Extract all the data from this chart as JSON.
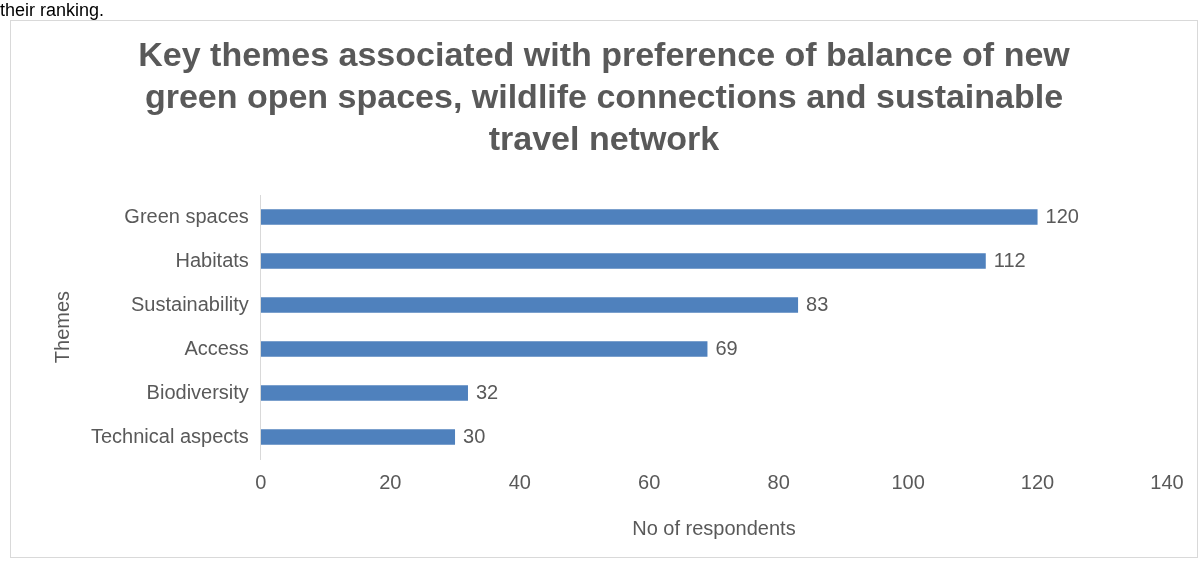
{
  "chart_data": {
    "type": "bar",
    "orientation": "horizontal",
    "title": "Key themes associated with preference of balance of new green open spaces, wildlife connections and sustainable travel network",
    "categories": [
      "Green spaces",
      "Habitats",
      "Sustainability",
      "Access",
      "Biodiversity",
      "Technical aspects"
    ],
    "values": [
      120,
      112,
      83,
      69,
      32,
      30
    ],
    "color": "#4f81bd",
    "xlim": [
      0,
      140
    ],
    "xticks": [
      0,
      20,
      40,
      60,
      80,
      100,
      120,
      140
    ],
    "xlabel": "No of respondents",
    "ylabel": "Themes",
    "data_labels": true,
    "legend": false,
    "annotations": [
      "their ranking."
    ]
  }
}
